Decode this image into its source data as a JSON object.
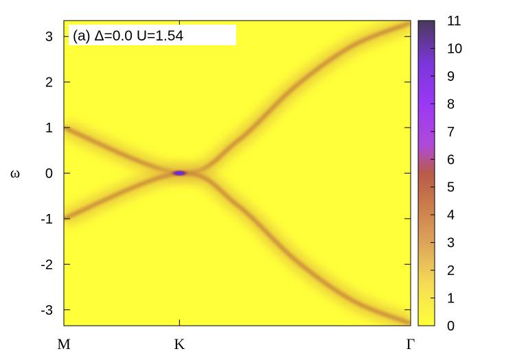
{
  "chart_data": {
    "type": "heatmap",
    "panel_label": "(a)  Δ=0.0  U=1.54",
    "ylabel": "ω",
    "xlabel": "",
    "x_tick_labels": [
      "M",
      "K",
      "Γ"
    ],
    "x_ticks": [
      0,
      1,
      3
    ],
    "xlim": [
      0,
      3
    ],
    "ylim": [
      -3.35,
      3.35
    ],
    "y_ticks": [
      3,
      2,
      1,
      0,
      -1,
      -2,
      -3
    ],
    "y_tick_labels": [
      "3",
      "2",
      "1",
      "0",
      "-1",
      "-2",
      "-3"
    ],
    "colorbar": {
      "range": [
        0,
        11
      ],
      "ticks": [
        11,
        10,
        9,
        8,
        7,
        6,
        5,
        4,
        3,
        2,
        1,
        0
      ],
      "tick_labels": [
        "11",
        "10",
        "9",
        "8",
        "7",
        "6",
        "5",
        "4",
        "3",
        "2",
        "1",
        "0"
      ],
      "colors": [
        {
          "value": 0,
          "color": "#ffff3a"
        },
        {
          "value": 1.5,
          "color": "#f5dc55"
        },
        {
          "value": 3,
          "color": "#dca45a"
        },
        {
          "value": 4.5,
          "color": "#c8784a"
        },
        {
          "value": 5.5,
          "color": "#b85a4a"
        },
        {
          "value": 6.5,
          "color": "#b04ad8"
        },
        {
          "value": 8,
          "color": "#9a38f5"
        },
        {
          "value": 9.5,
          "color": "#7a36d8"
        },
        {
          "value": 11,
          "color": "#4a3a5a"
        }
      ]
    },
    "bands": [
      {
        "name": "upper",
        "points": [
          [
            0,
            1.0
          ],
          [
            1,
            0.0
          ],
          [
            1.5,
            0.7
          ],
          [
            2,
            1.9
          ],
          [
            2.5,
            2.8
          ],
          [
            3,
            3.3
          ]
        ]
      },
      {
        "name": "lower",
        "points": [
          [
            0,
            -1.0
          ],
          [
            1,
            0.0
          ],
          [
            1.5,
            -0.7
          ],
          [
            2,
            -1.9
          ],
          [
            2.5,
            -2.8
          ],
          [
            3,
            -3.3
          ]
        ]
      }
    ],
    "peak": {
      "k": 1,
      "omega": 0.0,
      "value": 11
    }
  }
}
